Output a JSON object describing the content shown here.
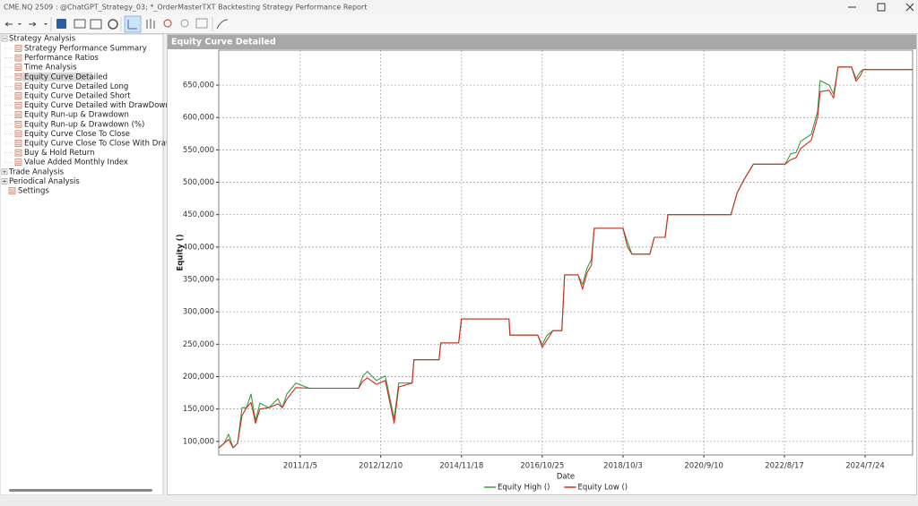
{
  "window": {
    "title": "CME.NQ 2509 : @ChatGPT_Strategy_03; *_OrderMasterTXT Backtesting Strategy Performance Report"
  },
  "tree": {
    "root": "Strategy Analysis",
    "children": [
      "Strategy Performance Summary",
      "Performance Ratios",
      "Time Analysis",
      "Equity Curve Detailed",
      "Equity Curve Detailed Long",
      "Equity Curve Detailed Short",
      "Equity Curve Detailed with DrawDown",
      "Equity Run-up & Drawdown",
      "Equity Run-up & Drawdown (%)",
      "Equity Curve Close To Close",
      "Equity Curve Close To Close With Drawdown",
      "Buy & Hold Return",
      "Value Added Monthly Index"
    ],
    "others": [
      "Trade Analysis",
      "Periodical Analysis"
    ],
    "settings": "Settings"
  },
  "panel": {
    "title": "Equity Curve Detailed"
  },
  "chart_data": {
    "type": "line",
    "x_label": "Date",
    "y_label": "Equity ()",
    "x": [
      "2009/1/21",
      "2009/3/9",
      "2009/4/17",
      "2009/5/27",
      "2009/7/5",
      "2009/8/13",
      "2009/9/21",
      "2009/10/31",
      "2009/12/9",
      "2010/1/17",
      "2010/4/5",
      "2010/6/23",
      "2010/8/1",
      "2010/9/9",
      "2010/11/27",
      "2011/3/24",
      "2012/5/29",
      "2012/7/7",
      "2012/8/15",
      "2012/11/2",
      "2013/1/19",
      "2013/4/7",
      "2013/5/17",
      "2013/9/11",
      "2013/9/27",
      "2014/5/5",
      "2014/5/20",
      "2014/10/24",
      "2014/11/17",
      "2016/1/8",
      "2016/1/16",
      "2016/9/16",
      "2016/10/25",
      "2016/12/3",
      "2017/1/27",
      "2017/4/15",
      "2017/5/9",
      "2017/9/4",
      "2017/10/13",
      "2017/11/21",
      "2017/12/30",
      "2018/1/23",
      "2018/10/3",
      "2018/11/11",
      "2018/12/20",
      "2019/5/26",
      "2019/7/4",
      "2019/10/7",
      "2019/10/31",
      "2021/5/5",
      "2021/6/29",
      "2021/8/31",
      "2021/11/18",
      "2022/8/24",
      "2022/10/11",
      "2022/11/27",
      "2023/1/5",
      "2023/4/9",
      "2023/6/3",
      "2023/6/26",
      "2023/9/13",
      "2023/10/22",
      "2023/11/30",
      "2024/3/27",
      "2024/5/5",
      "2024/6/13",
      "2024/7/7",
      "2025/9/12"
    ],
    "series": [
      {
        "name": "Equity High ()",
        "color": "#3c9a3c",
        "values": [
          90000,
          97000,
          111000,
          90000,
          97000,
          152000,
          152000,
          173000,
          132000,
          159000,
          152000,
          166000,
          152000,
          173000,
          190000,
          182000,
          182000,
          201000,
          208000,
          194000,
          201000,
          135000,
          190000,
          190000,
          226000,
          226000,
          252000,
          252000,
          289000,
          289000,
          264000,
          264000,
          249000,
          263000,
          271000,
          271000,
          357000,
          357000,
          342000,
          367000,
          381000,
          429000,
          429000,
          408000,
          389000,
          389000,
          415000,
          415000,
          450000,
          450000,
          484000,
          505000,
          528000,
          528000,
          544000,
          546000,
          563000,
          574000,
          609000,
          657000,
          650000,
          636000,
          678000,
          678000,
          660000,
          671000,
          674000,
          674000
        ]
      },
      {
        "name": "Equity Low ()",
        "color": "#d22b1e",
        "values": [
          90000,
          97000,
          103000,
          90000,
          97000,
          140000,
          152000,
          160000,
          128000,
          150000,
          152000,
          158000,
          152000,
          165000,
          183000,
          182000,
          182000,
          193000,
          198000,
          188000,
          194000,
          128000,
          184000,
          190000,
          226000,
          226000,
          252000,
          252000,
          289000,
          289000,
          264000,
          264000,
          245000,
          256000,
          271000,
          271000,
          357000,
          357000,
          335000,
          360000,
          372000,
          429000,
          429000,
          400000,
          389000,
          389000,
          415000,
          415000,
          450000,
          450000,
          484000,
          505000,
          528000,
          528000,
          535000,
          538000,
          552000,
          565000,
          600000,
          640000,
          642000,
          630000,
          678000,
          678000,
          656000,
          665000,
          674000,
          674000
        ]
      }
    ],
    "xlim": [
      "2009/1/21",
      "2025/9/13"
    ],
    "xticks": [
      "2011/1/5",
      "2012/12/10",
      "2014/11/18",
      "2016/10/25",
      "2018/10/3",
      "2020/9/10",
      "2022/8/17",
      "2024/7/24"
    ],
    "ylim": [
      79000,
      704000
    ],
    "yticks": [
      {
        "value": 100000,
        "label": "100,000"
      },
      {
        "value": 150000,
        "label": "150,000"
      },
      {
        "value": 200000,
        "label": "200,000"
      },
      {
        "value": 250000,
        "label": "250,000"
      },
      {
        "value": 300000,
        "label": "300,000"
      },
      {
        "value": 350000,
        "label": "350,000"
      },
      {
        "value": 400000,
        "label": "400,000"
      },
      {
        "value": 450000,
        "label": "450,000"
      },
      {
        "value": 500000,
        "label": "500,000"
      },
      {
        "value": 550000,
        "label": "550,000"
      },
      {
        "value": 600000,
        "label": "600,000"
      },
      {
        "value": 650000,
        "label": "650,000"
      }
    ],
    "grid": true
  }
}
